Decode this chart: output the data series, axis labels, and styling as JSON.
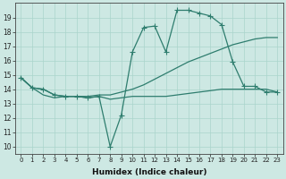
{
  "line_volatile_x": [
    0,
    1,
    2,
    3,
    4,
    5,
    6,
    7,
    8,
    9,
    10,
    11,
    12,
    13,
    14,
    15,
    16,
    17,
    18,
    19,
    20,
    21,
    22,
    23
  ],
  "line_volatile_y": [
    14.8,
    14.1,
    14.0,
    13.6,
    13.5,
    13.5,
    13.4,
    13.5,
    10.0,
    12.2,
    16.6,
    18.3,
    18.4,
    16.6,
    19.5,
    19.5,
    19.3,
    19.1,
    18.5,
    15.9,
    14.2,
    14.2,
    13.8,
    13.8
  ],
  "line_flat_x": [
    0,
    1,
    2,
    3,
    4,
    5,
    6,
    7,
    8,
    9,
    10,
    11,
    12,
    13,
    14,
    15,
    16,
    17,
    18,
    19,
    20,
    21,
    22,
    23
  ],
  "line_flat_y": [
    14.8,
    14.1,
    13.6,
    13.4,
    13.5,
    13.5,
    13.4,
    13.5,
    13.3,
    13.4,
    13.5,
    13.5,
    13.5,
    13.5,
    13.6,
    13.7,
    13.8,
    13.9,
    14.0,
    14.0,
    14.0,
    14.0,
    14.0,
    13.8
  ],
  "line_diagonal_x": [
    0,
    1,
    2,
    3,
    4,
    5,
    6,
    7,
    8,
    9,
    10,
    11,
    12,
    13,
    14,
    15,
    16,
    17,
    18,
    19,
    20,
    21,
    22,
    23
  ],
  "line_diagonal_y": [
    14.8,
    14.1,
    14.0,
    13.6,
    13.5,
    13.5,
    13.5,
    13.6,
    13.6,
    13.8,
    14.0,
    14.3,
    14.7,
    15.1,
    15.5,
    15.9,
    16.2,
    16.5,
    16.8,
    17.1,
    17.3,
    17.5,
    17.6,
    17.6
  ],
  "line_color": "#2e7d6e",
  "bg_color": "#cde8e3",
  "grid_color": "#aad4cc",
  "xlabel": "Humidex (Indice chaleur)",
  "ylim": [
    9.5,
    20.0
  ],
  "xlim": [
    -0.5,
    23.5
  ],
  "yticks": [
    10,
    11,
    12,
    13,
    14,
    15,
    16,
    17,
    18,
    19
  ],
  "xticks": [
    0,
    1,
    2,
    3,
    4,
    5,
    6,
    7,
    8,
    9,
    10,
    11,
    12,
    13,
    14,
    15,
    16,
    17,
    18,
    19,
    20,
    21,
    22,
    23
  ]
}
